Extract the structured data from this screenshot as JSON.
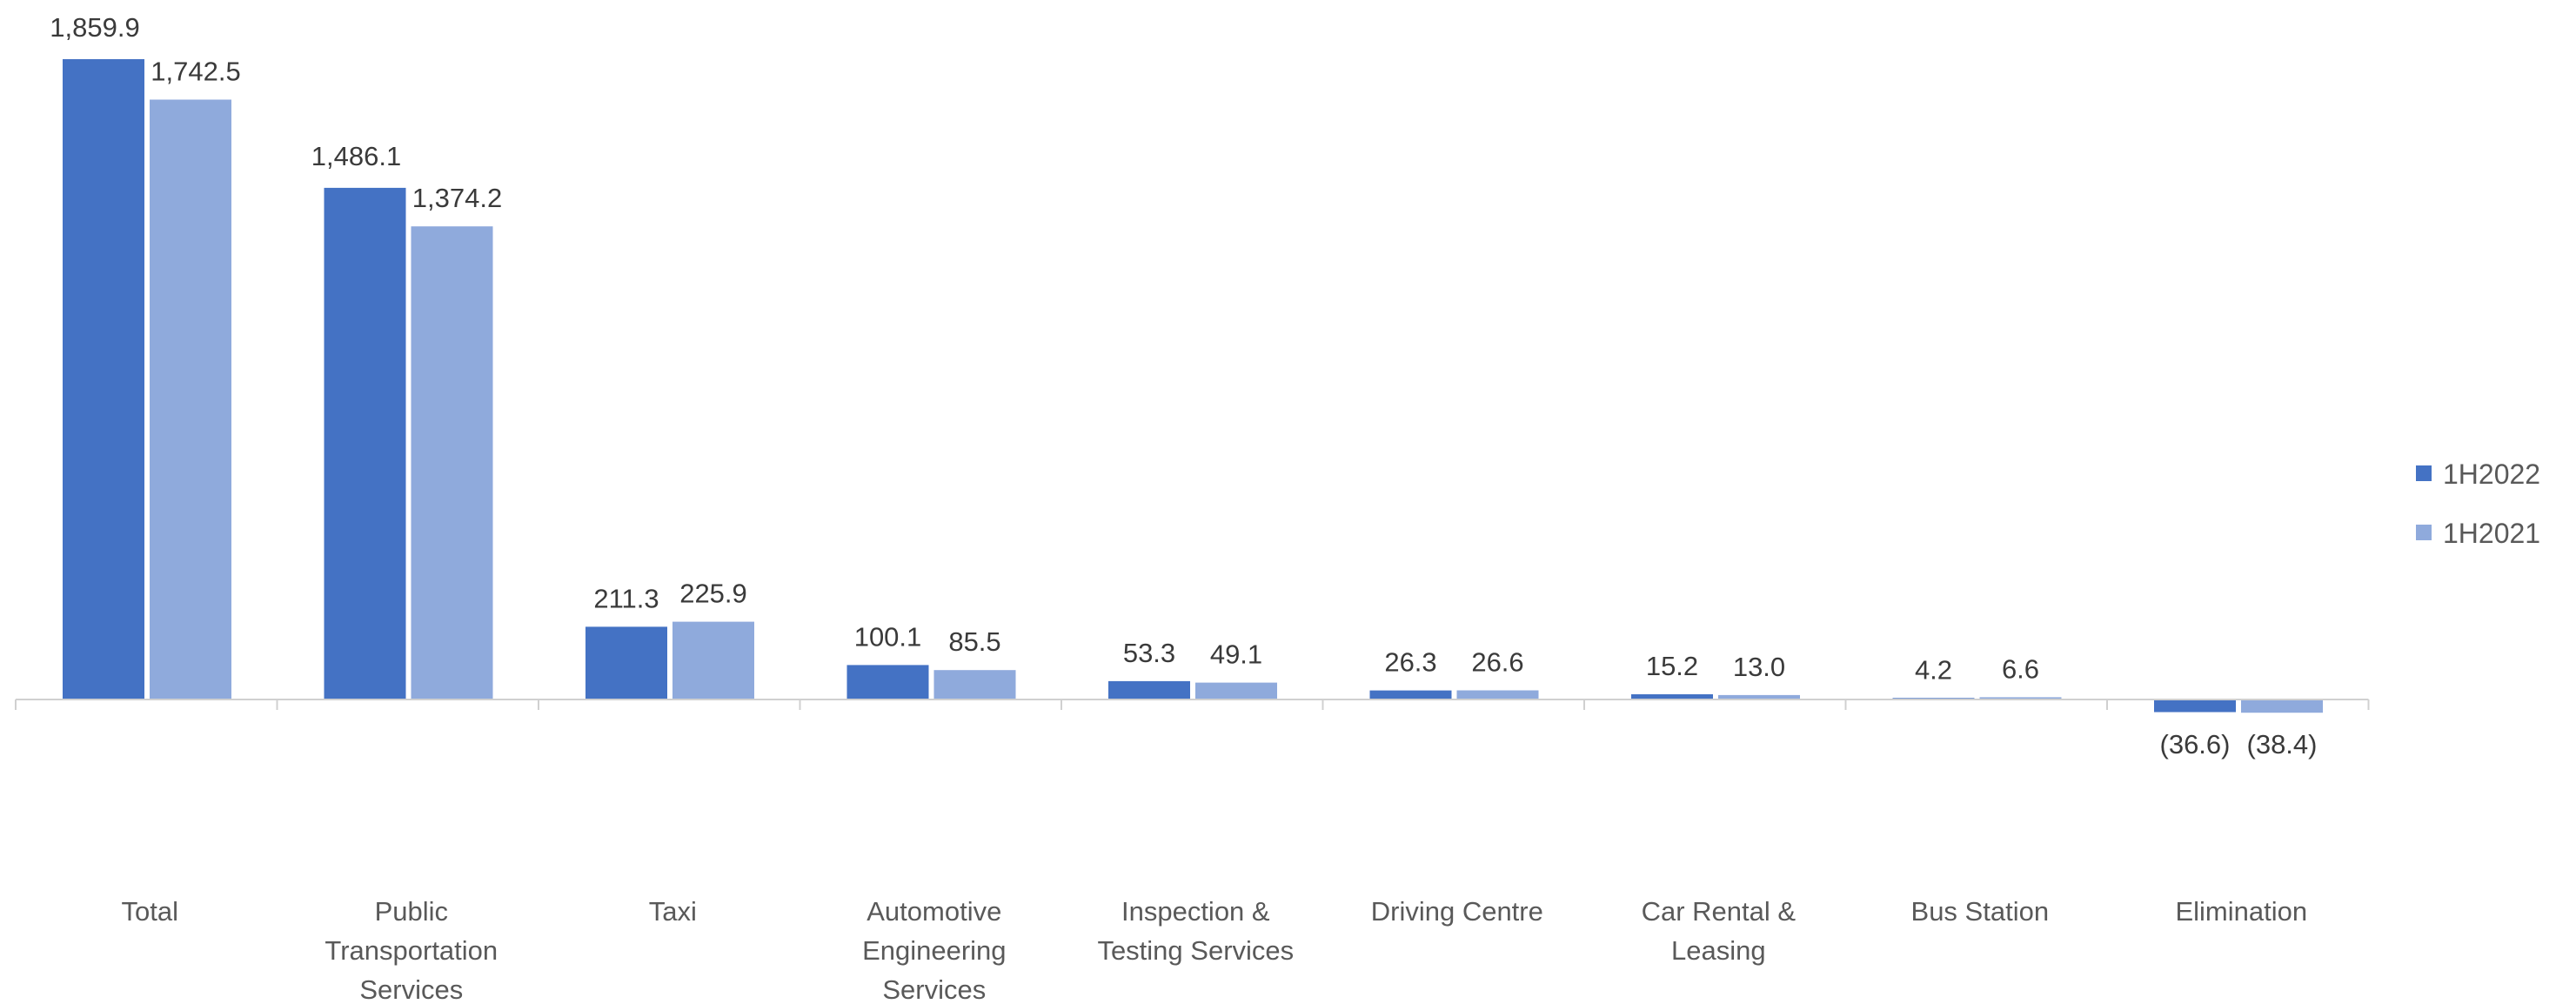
{
  "chart_data": {
    "type": "bar",
    "categories": [
      "Total",
      "Public Transportation Services",
      "Taxi",
      "Automotive Engineering Services",
      "Inspection & Testing Services",
      "Driving Centre",
      "Car Rental & Leasing",
      "Bus Station",
      "Elimination"
    ],
    "category_lines": [
      [
        "Total"
      ],
      [
        "Public",
        "Transportation",
        "Services"
      ],
      [
        "Taxi"
      ],
      [
        "Automotive",
        "Engineering",
        "Services"
      ],
      [
        "Inspection &",
        "Testing Services"
      ],
      [
        "Driving Centre"
      ],
      [
        "Car Rental &",
        "Leasing"
      ],
      [
        "Bus Station"
      ],
      [
        "Elimination"
      ]
    ],
    "series": [
      {
        "name": "1H2022",
        "color": "#4472C4",
        "values": [
          1859.9,
          1486.1,
          211.3,
          100.1,
          53.3,
          26.3,
          15.2,
          4.2,
          -36.6
        ],
        "labels": [
          "1,859.9",
          "1,486.1",
          "211.3",
          "100.1",
          "53.3",
          "26.3",
          "15.2",
          "4.2",
          "(36.6)"
        ]
      },
      {
        "name": "1H2021",
        "color": "#8FAADC",
        "values": [
          1742.5,
          1374.2,
          225.9,
          85.5,
          49.1,
          26.6,
          13.0,
          6.6,
          -38.4
        ],
        "labels": [
          "1,742.5",
          "1,374.2",
          "225.9",
          "85.5",
          "49.1",
          "26.6",
          "13.0",
          "6.6",
          "(38.4)"
        ]
      }
    ],
    "title": "",
    "xlabel": "",
    "ylabel": "",
    "ylim": [
      -38.4,
      1859.9
    ],
    "grid": false,
    "legend_position": "right"
  }
}
